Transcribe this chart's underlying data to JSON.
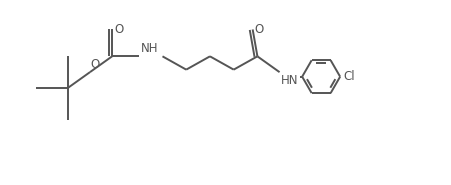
{
  "background_color": "#ffffff",
  "line_color": "#555555",
  "line_width": 1.4,
  "font_size": 8.5,
  "figsize": [
    4.52,
    1.85
  ],
  "dpi": 100,
  "xlim": [
    0,
    10.0
  ],
  "ylim": [
    -1.8,
    2.2
  ]
}
